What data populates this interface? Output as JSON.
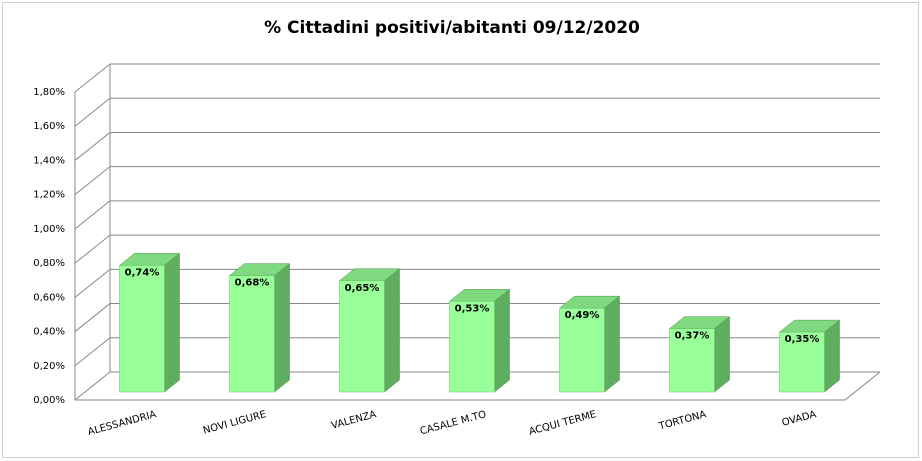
{
  "chart_data": {
    "type": "bar3d",
    "title": "% Cittadini positivi/abitanti 09/12/2020",
    "categories": [
      "ALESSANDRIA",
      "NOVI LIGURE",
      "VALENZA",
      "CASALE M.TO",
      "ACQUI TERME",
      "TORTONA",
      "OVADA"
    ],
    "values": [
      0.74,
      0.68,
      0.65,
      0.53,
      0.49,
      0.37,
      0.35
    ],
    "value_labels": [
      "0,74%",
      "0,68%",
      "0,65%",
      "0,53%",
      "0,49%",
      "0,37%",
      "0,35%"
    ],
    "color": "#99ff99",
    "ylim": [
      0,
      1.8
    ],
    "yticks": [
      {
        "value": 0,
        "label": "0,00%"
      },
      {
        "value": 0.2,
        "label": "0,20%"
      },
      {
        "value": 0.4,
        "label": "0,40%"
      },
      {
        "value": 0.6,
        "label": "0,60%"
      },
      {
        "value": 0.8,
        "label": "0,80%"
      },
      {
        "value": 1.0,
        "label": "1,00%"
      },
      {
        "value": 1.2,
        "label": "1,20%"
      },
      {
        "value": 1.4,
        "label": "1,40%"
      },
      {
        "value": 1.6,
        "label": "1,60%"
      },
      {
        "value": 1.8,
        "label": "1,80%"
      }
    ],
    "grid": true
  }
}
